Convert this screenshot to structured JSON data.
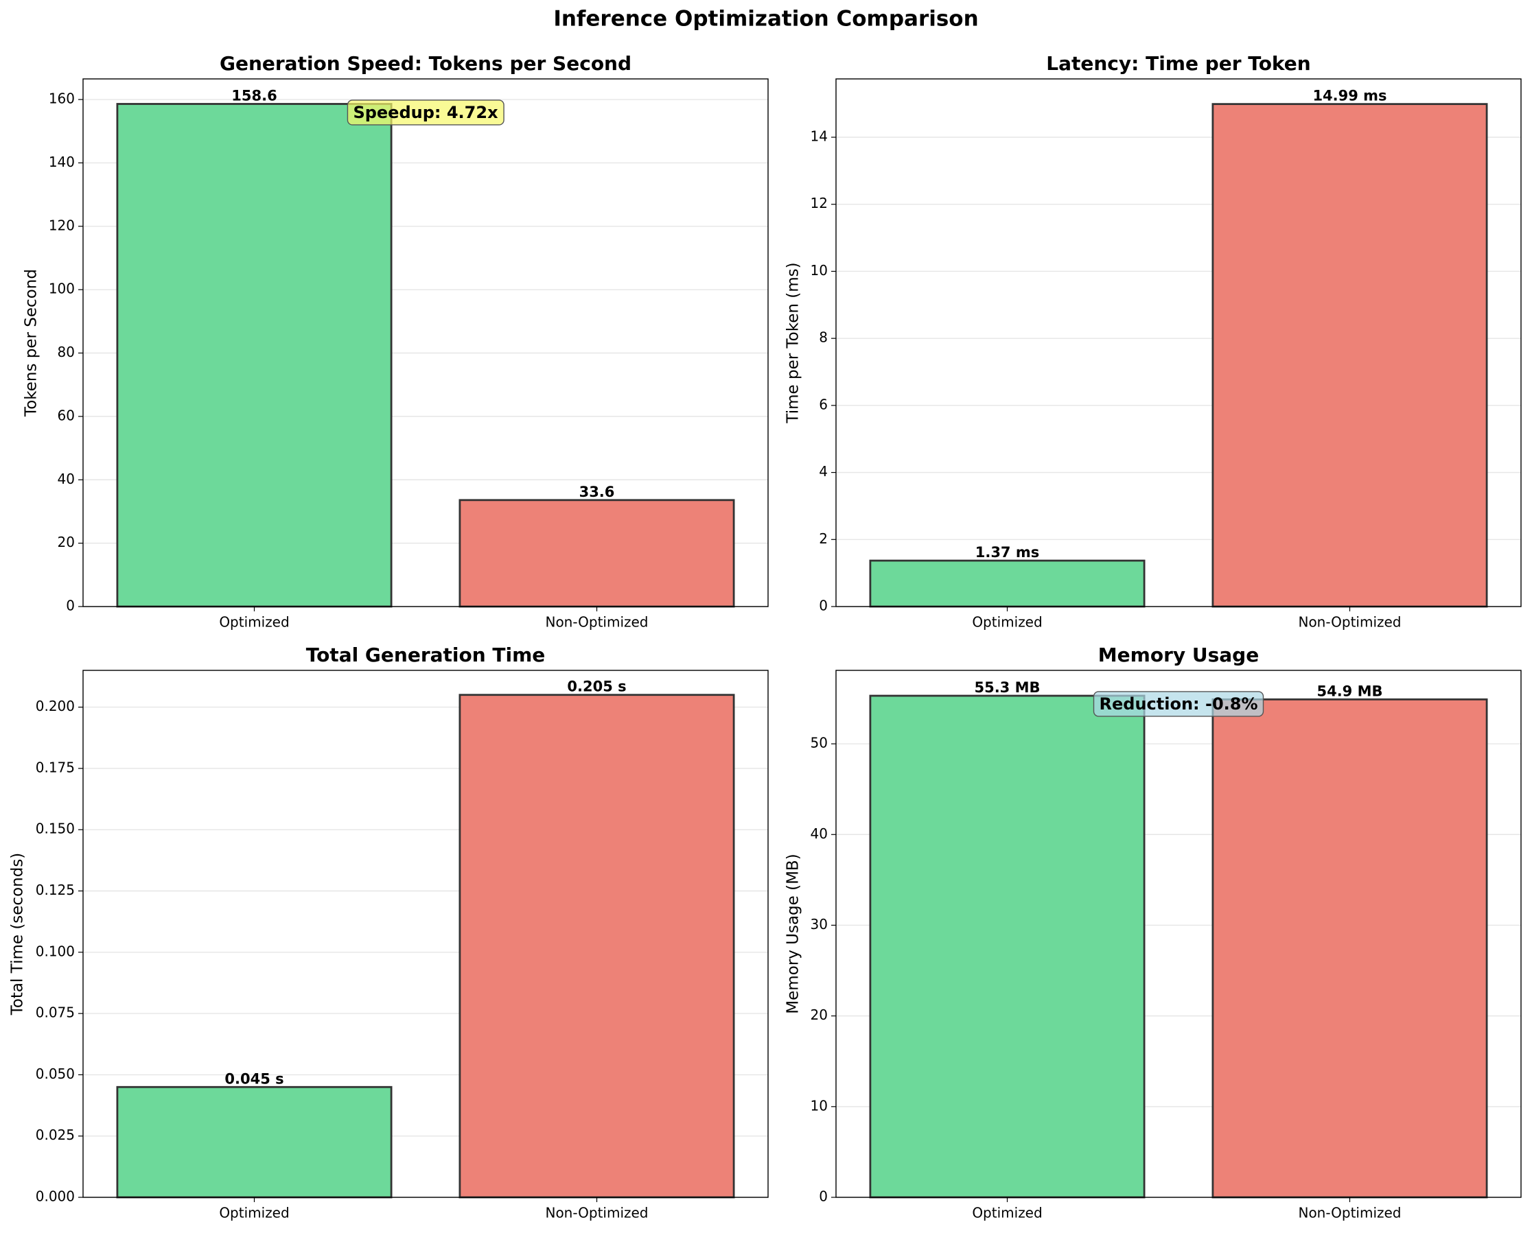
{
  "title": "Inference Optimization Comparison",
  "chart_data": [
    {
      "type": "bar",
      "title": "Generation Speed: Tokens per Second",
      "ylabel": "Tokens per Second",
      "categories": [
        "Optimized",
        "Non-Optimized"
      ],
      "values": [
        158.6,
        33.6
      ],
      "colors": [
        "#6dd99a",
        "#ed8277"
      ],
      "ylim": [
        0,
        166.5
      ],
      "yticks": [
        0,
        20,
        40,
        60,
        80,
        100,
        120,
        140,
        160
      ],
      "grid": true,
      "annotation": "Speedup: 4.72x",
      "annotation_color": "#f6f86a"
    },
    {
      "type": "bar",
      "title": "Latency: Time per Token",
      "ylabel": "Time per Token (ms)",
      "categories": [
        "Optimized",
        "Non-Optimized"
      ],
      "values": [
        1.37,
        14.99
      ],
      "value_labels": [
        "1.37 ms",
        "14.99 ms"
      ],
      "colors": [
        "#6dd99a",
        "#ed8277"
      ],
      "ylim": [
        0,
        15.74
      ],
      "yticks": [
        0,
        2,
        4,
        6,
        8,
        10,
        12,
        14
      ],
      "grid": true
    },
    {
      "type": "bar",
      "title": "Total Generation Time",
      "ylabel": "Total Time (seconds)",
      "categories": [
        "Optimized",
        "Non-Optimized"
      ],
      "values": [
        0.045,
        0.205
      ],
      "value_labels": [
        "0.045 s",
        "0.205 s"
      ],
      "colors": [
        "#6dd99a",
        "#ed8277"
      ],
      "ylim": [
        0,
        0.215
      ],
      "yticks": [
        {
          "value": 0,
          "label": "0.000"
        },
        0.025,
        {
          "value": 0.05,
          "label": "0.050"
        },
        0.075,
        {
          "value": 0.1,
          "label": "0.100"
        },
        0.125,
        {
          "value": 0.15,
          "label": "0.150"
        },
        0.175,
        {
          "value": 0.2,
          "label": "0.200"
        }
      ],
      "grid": true
    },
    {
      "type": "bar",
      "title": "Memory Usage",
      "ylabel": "Memory Usage (MB)",
      "categories": [
        "Optimized",
        "Non-Optimized"
      ],
      "values": [
        55.3,
        54.9
      ],
      "value_labels": [
        "55.3 MB",
        "54.9 MB"
      ],
      "colors": [
        "#6dd99a",
        "#ed8277"
      ],
      "ylim": [
        0,
        58.1
      ],
      "yticks": [
        0,
        10,
        20,
        30,
        40,
        50
      ],
      "grid": true,
      "annotation": "Reduction: -0.8%",
      "annotation_color": "#add8e6"
    }
  ]
}
